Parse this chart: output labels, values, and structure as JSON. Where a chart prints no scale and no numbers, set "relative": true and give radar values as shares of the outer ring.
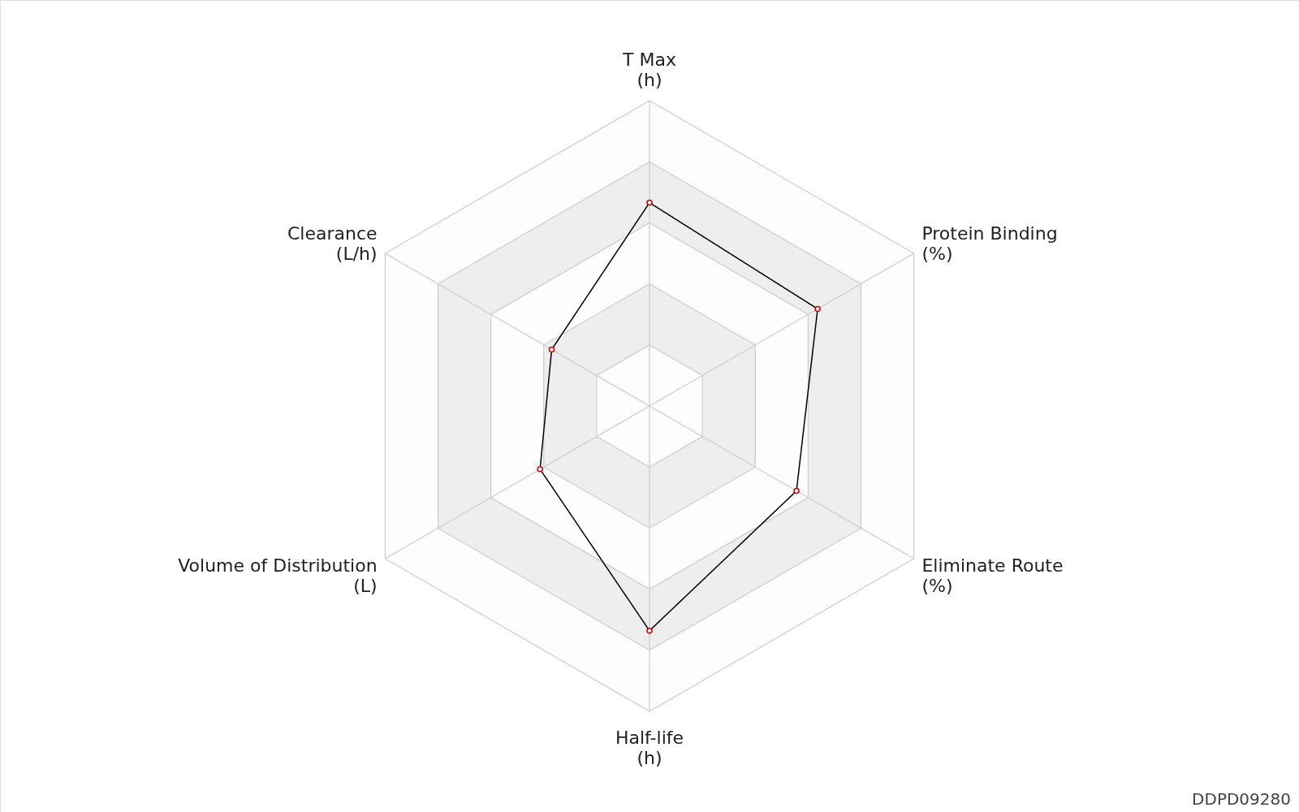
{
  "chart_data": {
    "type": "radar",
    "relative": true,
    "categories": [
      "T Max\n(h)",
      "Protein Binding\n(%)",
      "Eliminate Route\n(%)",
      "Half-life\n(h)",
      "Volume of Distribution\n(L)",
      "Clearance\n(L/h)"
    ],
    "series": [
      {
        "color": "#000000",
        "values": [
          0.666,
          0.636,
          0.556,
          0.736,
          0.414,
          0.37
        ]
      }
    ],
    "marker": "circle",
    "line_style": "solid",
    "grid": true,
    "annotations": [
      "DDPD09280"
    ]
  }
}
